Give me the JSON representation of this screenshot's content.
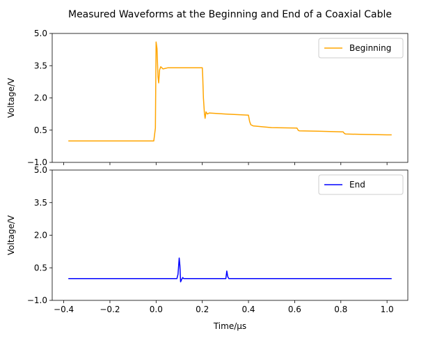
{
  "chart_data": {
    "type": "line",
    "title": "Measured Waveforms at the Beginning and End of a Coaxial Cable",
    "xlabel": "Time/μs",
    "x_ticks": [
      -0.4,
      -0.2,
      0.0,
      0.2,
      0.4,
      0.6,
      0.8,
      1.0
    ],
    "x_tick_labels": [
      "−0.4",
      "−0.2",
      "0.0",
      "0.2",
      "0.4",
      "0.6",
      "0.8",
      "1.0"
    ],
    "xlim": [
      -0.45,
      1.09
    ],
    "grid": false,
    "subplots": [
      {
        "ylabel": "Voltage/V",
        "ylim": [
          -1.0,
          5.0
        ],
        "y_ticks": [
          -1.0,
          0.5,
          2.0,
          3.5,
          5.0
        ],
        "y_tick_labels": [
          "−1.0",
          "0.5",
          "2.0",
          "3.5",
          "5.0"
        ],
        "legend_position": "upper-right",
        "series": [
          {
            "name": "Beginning",
            "color": "#ffa500",
            "points": [
              [
                -0.38,
                0.0
              ],
              [
                -0.3,
                0.0
              ],
              [
                -0.2,
                0.0
              ],
              [
                -0.1,
                0.0
              ],
              [
                -0.01,
                0.0
              ],
              [
                -0.003,
                0.6
              ],
              [
                0.0,
                4.6
              ],
              [
                0.004,
                4.3
              ],
              [
                0.008,
                3.0
              ],
              [
                0.011,
                2.7
              ],
              [
                0.015,
                3.3
              ],
              [
                0.02,
                3.45
              ],
              [
                0.03,
                3.35
              ],
              [
                0.05,
                3.4
              ],
              [
                0.1,
                3.4
              ],
              [
                0.15,
                3.4
              ],
              [
                0.2,
                3.4
              ],
              [
                0.202,
                3.0
              ],
              [
                0.205,
                2.0
              ],
              [
                0.209,
                1.3
              ],
              [
                0.212,
                1.05
              ],
              [
                0.216,
                1.35
              ],
              [
                0.222,
                1.25
              ],
              [
                0.23,
                1.3
              ],
              [
                0.3,
                1.25
              ],
              [
                0.4,
                1.2
              ],
              [
                0.405,
                0.9
              ],
              [
                0.41,
                0.75
              ],
              [
                0.42,
                0.7
              ],
              [
                0.5,
                0.62
              ],
              [
                0.61,
                0.6
              ],
              [
                0.615,
                0.5
              ],
              [
                0.62,
                0.47
              ],
              [
                0.7,
                0.45
              ],
              [
                0.81,
                0.42
              ],
              [
                0.815,
                0.35
              ],
              [
                0.82,
                0.32
              ],
              [
                0.9,
                0.3
              ],
              [
                1.0,
                0.28
              ],
              [
                1.02,
                0.28
              ]
            ]
          }
        ]
      },
      {
        "ylabel": "Voltage/V",
        "ylim": [
          -1.0,
          5.0
        ],
        "y_ticks": [
          -1.0,
          0.5,
          2.0,
          3.5,
          5.0
        ],
        "y_tick_labels": [
          "−1.0",
          "0.5",
          "2.0",
          "3.5",
          "5.0"
        ],
        "legend_position": "upper-right",
        "series": [
          {
            "name": "End",
            "color": "#0000ff",
            "points": [
              [
                -0.38,
                0.0
              ],
              [
                -0.2,
                0.0
              ],
              [
                0.0,
                0.0
              ],
              [
                0.09,
                0.0
              ],
              [
                0.095,
                0.2
              ],
              [
                0.1,
                0.95
              ],
              [
                0.103,
                0.6
              ],
              [
                0.106,
                -0.15
              ],
              [
                0.11,
                -0.05
              ],
              [
                0.115,
                0.05
              ],
              [
                0.12,
                0.0
              ],
              [
                0.2,
                0.0
              ],
              [
                0.29,
                0.0
              ],
              [
                0.302,
                0.0
              ],
              [
                0.306,
                0.35
              ],
              [
                0.31,
                0.1
              ],
              [
                0.315,
                0.0
              ],
              [
                0.5,
                0.0
              ],
              [
                0.7,
                0.0
              ],
              [
                0.9,
                0.0
              ],
              [
                1.02,
                0.0
              ]
            ]
          }
        ]
      }
    ]
  }
}
